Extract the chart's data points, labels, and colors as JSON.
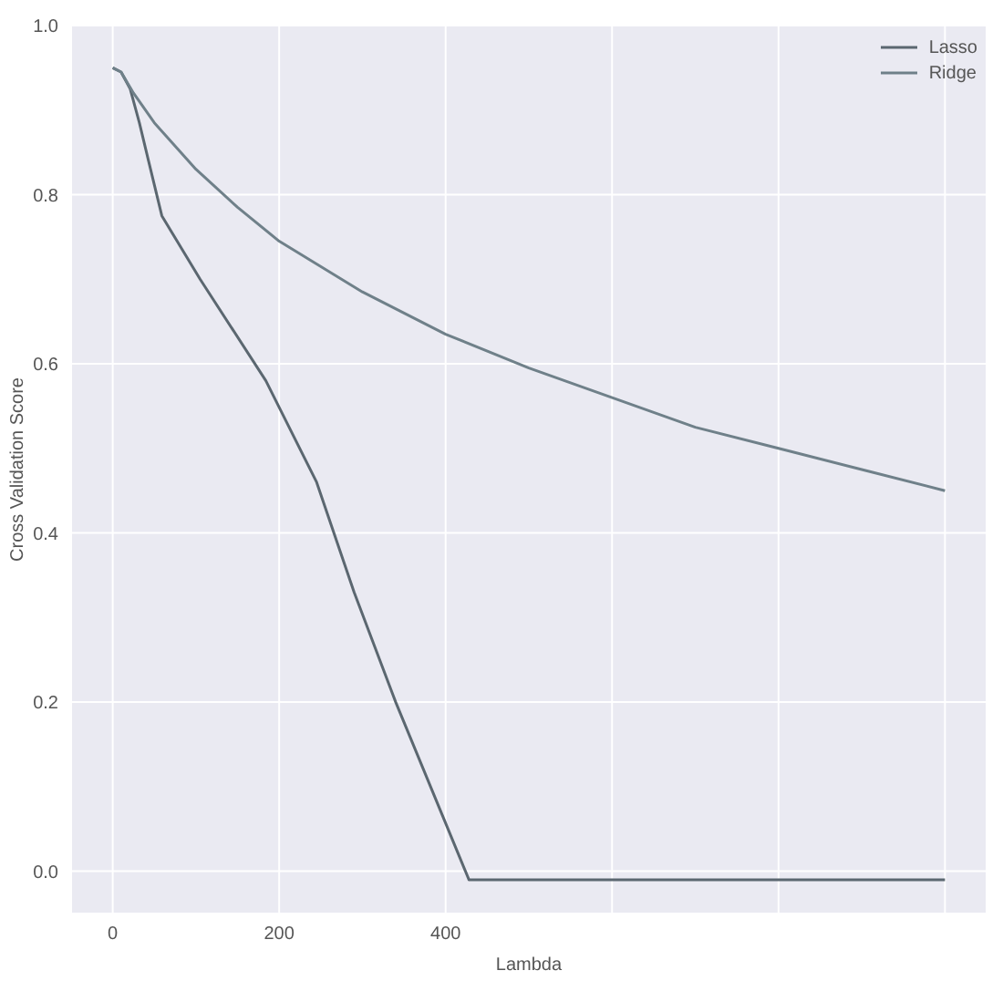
{
  "chart_data": {
    "type": "line",
    "xlabel": "Lambda",
    "ylabel": "Cross Validation Score",
    "series": [
      {
        "name": "Lasso",
        "color": "#5b6770",
        "x": [
          0,
          10,
          21,
          32,
          43,
          59,
          105,
          184,
          245,
          290,
          340,
          428,
          1000
        ],
        "values": [
          0.95,
          0.945,
          0.925,
          0.885,
          0.84,
          0.775,
          0.7,
          0.58,
          0.46,
          0.33,
          0.2,
          -0.01,
          -0.01
        ]
      },
      {
        "name": "Ridge",
        "color": "#6f8089",
        "x": [
          0,
          10,
          25,
          50,
          100,
          150,
          200,
          300,
          400,
          500,
          600,
          700,
          800,
          900,
          1000
        ],
        "values": [
          0.95,
          0.945,
          0.92,
          0.885,
          0.83,
          0.785,
          0.745,
          0.685,
          0.635,
          0.595,
          0.56,
          0.525,
          0.5,
          0.475,
          0.45
        ]
      }
    ],
    "xlim": [
      -50,
      1050
    ],
    "xticks": [
      0,
      200,
      400,
      {
        "value": 600,
        "label": null
      },
      {
        "value": 800,
        "label": null
      },
      {
        "value": 1000,
        "label": null
      }
    ],
    "ylim": [
      -0.05,
      1
    ],
    "yticks": [
      {
        "value": 0,
        "label": "0.0"
      },
      {
        "value": 0.2,
        "label": "0.2"
      },
      {
        "value": 0.4,
        "label": "0.4"
      },
      {
        "value": 0.6,
        "label": "0.6"
      },
      {
        "value": 0.8,
        "label": "0.8"
      },
      {
        "value": 1,
        "label": "1.0"
      }
    ],
    "grid": true,
    "legend": "top right",
    "marker": "none",
    "line_style": "solid"
  }
}
